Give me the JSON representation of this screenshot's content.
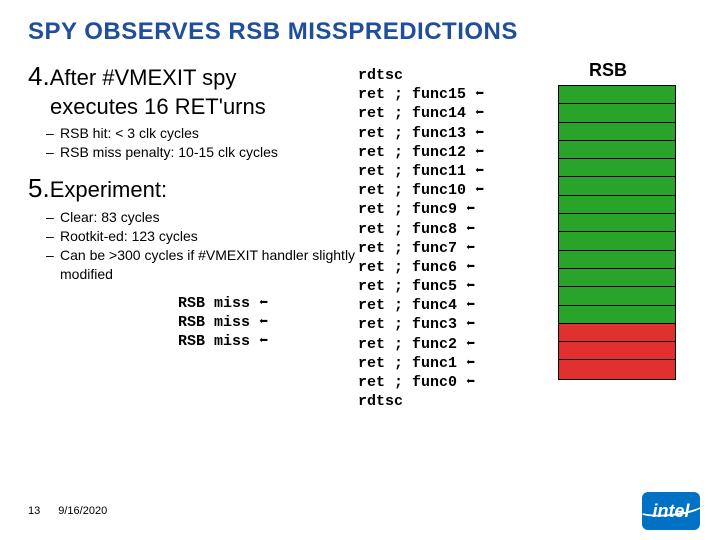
{
  "colors": {
    "title": "#1f4e9c",
    "text": "#000000",
    "rsb_green": "#29a329",
    "rsb_red": "#e03030",
    "rsb_border": "#000000",
    "logo_bg": "#0071c5"
  },
  "title": "SPY OBSERVES RSB MISSPREDICTIONS",
  "title_fontsize": 24,
  "item4": {
    "num": "4.",
    "lead1": "After #VMEXIT spy",
    "lead2": "executes 16 RET'urns",
    "subs": [
      "RSB hit: < 3 clk cycles",
      "RSB miss penalty: 10-15 clk cycles"
    ]
  },
  "item5": {
    "num": "5.",
    "lead": "Experiment:",
    "subs": [
      "Clear: 83 cycles",
      "Rootkit-ed: 123 cycles",
      "Can be >300 cycles if #VMEXIT handler slightly modified"
    ]
  },
  "miss_lines": [
    "RSB miss ⬅",
    "RSB miss ⬅",
    "RSB miss ⬅"
  ],
  "asm": {
    "first": "rdtsc",
    "rets": [
      "ret ; func15 ⬅",
      "ret ; func14 ⬅",
      "ret ; func13 ⬅",
      "ret ; func12 ⬅",
      "ret ; func11 ⬅",
      "ret ; func10 ⬅",
      "ret ; func9  ⬅",
      "ret ; func8  ⬅",
      "ret ; func7  ⬅",
      "ret ; func6  ⬅",
      "ret ; func5  ⬅",
      "ret ; func4  ⬅",
      "ret ; func3  ⬅",
      "ret ; func2  ⬅",
      "ret ; func1  ⬅",
      "ret ; func0  ⬅"
    ],
    "last": "rdtsc"
  },
  "rsb": {
    "label": "RSB",
    "cells_green": 13,
    "cells_red": 3
  },
  "footer": {
    "page": "13",
    "date": "9/16/2020",
    "logo": "intel"
  }
}
